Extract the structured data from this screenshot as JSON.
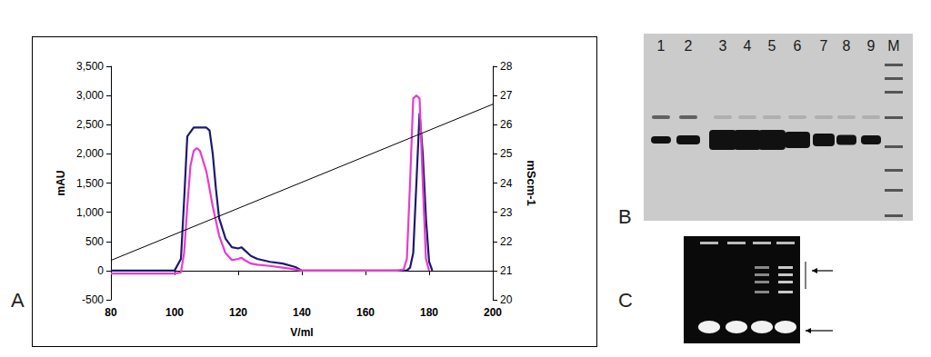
{
  "chart_data": {
    "type": "line",
    "x_label": "V/ml",
    "y_label": "mAU",
    "y2_label": "mScm-1",
    "xlim": [
      80,
      200
    ],
    "xticks": [
      80,
      100,
      120,
      140,
      160,
      180,
      200
    ],
    "ylim": [
      -500,
      3500
    ],
    "yticks": [
      -500,
      0,
      500,
      1000,
      1500,
      2000,
      2500,
      3000,
      3500
    ],
    "y2lim": [
      20,
      28
    ],
    "y2ticks": [
      20,
      21,
      22,
      23,
      24,
      25,
      26,
      27,
      28
    ],
    "grid": false,
    "series": [
      {
        "color": "#1c1a6e",
        "x": [
          80,
          95,
          100,
          102,
          103,
          104,
          106,
          108,
          110,
          111,
          112,
          113,
          114,
          116,
          118,
          120,
          121,
          122,
          124,
          126,
          130,
          134,
          138,
          140,
          150,
          170,
          173,
          174,
          175,
          176,
          177,
          178,
          179,
          180,
          181
        ],
        "values": [
          0,
          0,
          0,
          200,
          1200,
          2300,
          2450,
          2450,
          2450,
          2400,
          2000,
          1400,
          900,
          550,
          400,
          380,
          400,
          350,
          250,
          200,
          150,
          120,
          60,
          0,
          0,
          0,
          0,
          50,
          300,
          1500,
          2700,
          2000,
          900,
          150,
          0
        ]
      },
      {
        "color": "#e83ccf",
        "x": [
          80,
          95,
          100,
          102,
          103,
          104,
          105,
          106,
          107,
          108,
          110,
          112,
          114,
          116,
          118,
          120,
          121,
          122,
          124,
          126,
          130,
          134,
          138,
          140,
          150,
          170,
          172,
          173,
          174,
          175,
          176,
          177,
          178,
          179,
          180
        ],
        "values": [
          -50,
          -50,
          -50,
          -30,
          300,
          1100,
          1800,
          2050,
          2100,
          2050,
          1700,
          1100,
          600,
          300,
          180,
          200,
          220,
          180,
          120,
          100,
          80,
          50,
          20,
          0,
          0,
          0,
          20,
          200,
          1500,
          2950,
          3000,
          2950,
          1500,
          200,
          0
        ]
      },
      {
        "color": "#000000",
        "axis": "y2",
        "x": [
          80,
          200
        ],
        "values": [
          21.35,
          26.7
        ]
      }
    ]
  },
  "panel_labels": [
    "A",
    "B",
    "C"
  ],
  "gel_b": {
    "lane_labels": [
      "1",
      "2",
      "3",
      "4",
      "5",
      "6",
      "7",
      "8",
      "9",
      "M"
    ]
  }
}
